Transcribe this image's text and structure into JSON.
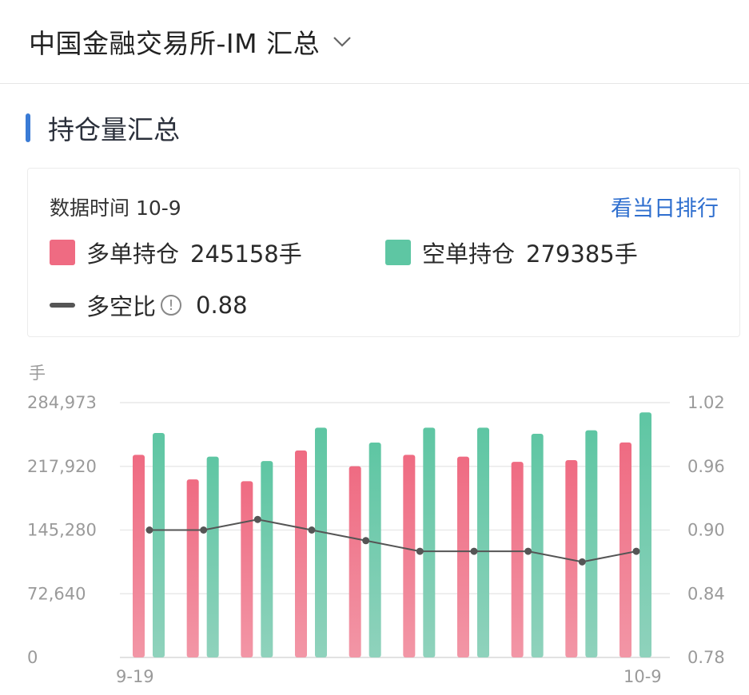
{
  "header": {
    "title": "中国金融交易所-IM 汇总"
  },
  "section": {
    "title": "持仓量汇总"
  },
  "card": {
    "time_label": "数据时间 10-9",
    "rank_link": "看当日排行",
    "long": {
      "label": "多单持仓",
      "value": "245158手",
      "color": "#ef6b82"
    },
    "short": {
      "label": "空单持仓",
      "value": "279385手",
      "color": "#5ec6a3"
    },
    "ratio": {
      "label": "多空比",
      "value": "0.88",
      "color": "#555555",
      "info_icon": "info-circle-icon"
    }
  },
  "chart_data": {
    "type": "bar",
    "unit_label": "手",
    "x_tick_labels": [
      "9-19",
      "10-9"
    ],
    "y_left_ticks": [
      "0",
      "72,640",
      "145,280",
      "217,920",
      "284,973"
    ],
    "y_left_range": [
      0,
      290560
    ],
    "y_right_ticks": [
      "0.78",
      "0.84",
      "0.90",
      "0.96",
      "1.02"
    ],
    "y_right_range": [
      0.78,
      1.02
    ],
    "series": [
      {
        "name": "多单持仓",
        "type": "bar",
        "color": "#ef6b82",
        "values": [
          231000,
          203000,
          201000,
          236000,
          218000,
          231000,
          229000,
          223000,
          225000,
          245158
        ]
      },
      {
        "name": "空单持仓",
        "type": "bar",
        "color": "#5ec6a3",
        "values": [
          256000,
          229000,
          224000,
          262000,
          245000,
          262000,
          262000,
          255000,
          259000,
          279385
        ]
      },
      {
        "name": "多空比",
        "type": "line",
        "axis": "right",
        "color": "#555555",
        "values": [
          0.9,
          0.9,
          0.91,
          0.9,
          0.89,
          0.88,
          0.88,
          0.88,
          0.87,
          0.88
        ]
      }
    ],
    "grid": true
  }
}
